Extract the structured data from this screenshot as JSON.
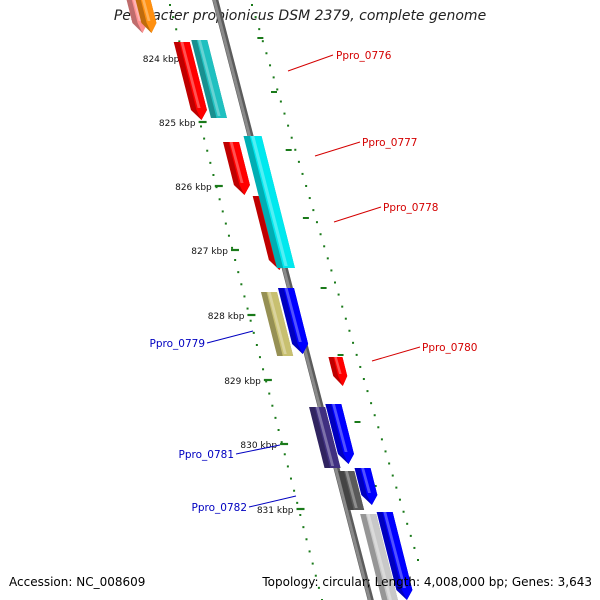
{
  "title": "Pelobacter propionicus DSM 2379, complete genome",
  "footer": {
    "accession": "Accession: NC_008609",
    "summary": "Topology: circular; Length: 4,008,000 bp; Genes: 3,643"
  },
  "scale": {
    "ticks": [
      {
        "label": "824 kbp"
      },
      {
        "label": "825 kbp"
      },
      {
        "label": "826 kbp"
      },
      {
        "label": "827 kbp"
      },
      {
        "label": "828 kbp"
      },
      {
        "label": "829 kbp"
      },
      {
        "label": "830 kbp"
      },
      {
        "label": "831 kbp"
      }
    ]
  },
  "gene_labels": [
    {
      "name": "Ppro_0776",
      "strand": "plus"
    },
    {
      "name": "Ppro_0777",
      "strand": "plus"
    },
    {
      "name": "Ppro_0778",
      "strand": "plus"
    },
    {
      "name": "Ppro_0779",
      "strand": "minus"
    },
    {
      "name": "Ppro_0780",
      "strand": "plus"
    },
    {
      "name": "Ppro_0781",
      "strand": "minus"
    },
    {
      "name": "Ppro_0782",
      "strand": "minus"
    }
  ],
  "colors": {
    "backbone": "#8a8a8a",
    "tick": "#1a7a1a",
    "plus_label": "#d40000",
    "minus_label": "#0000c0",
    "red": "#ff0000",
    "cyan": "#00e8ee",
    "teal": "#20c0c0",
    "blue": "#0000ff",
    "olive": "#c8c070",
    "slate": "#403080",
    "gray": "#5a5a5a",
    "light_gray": "#c8c8c8",
    "orange": "#ff9010",
    "pink": "#ff9090"
  }
}
